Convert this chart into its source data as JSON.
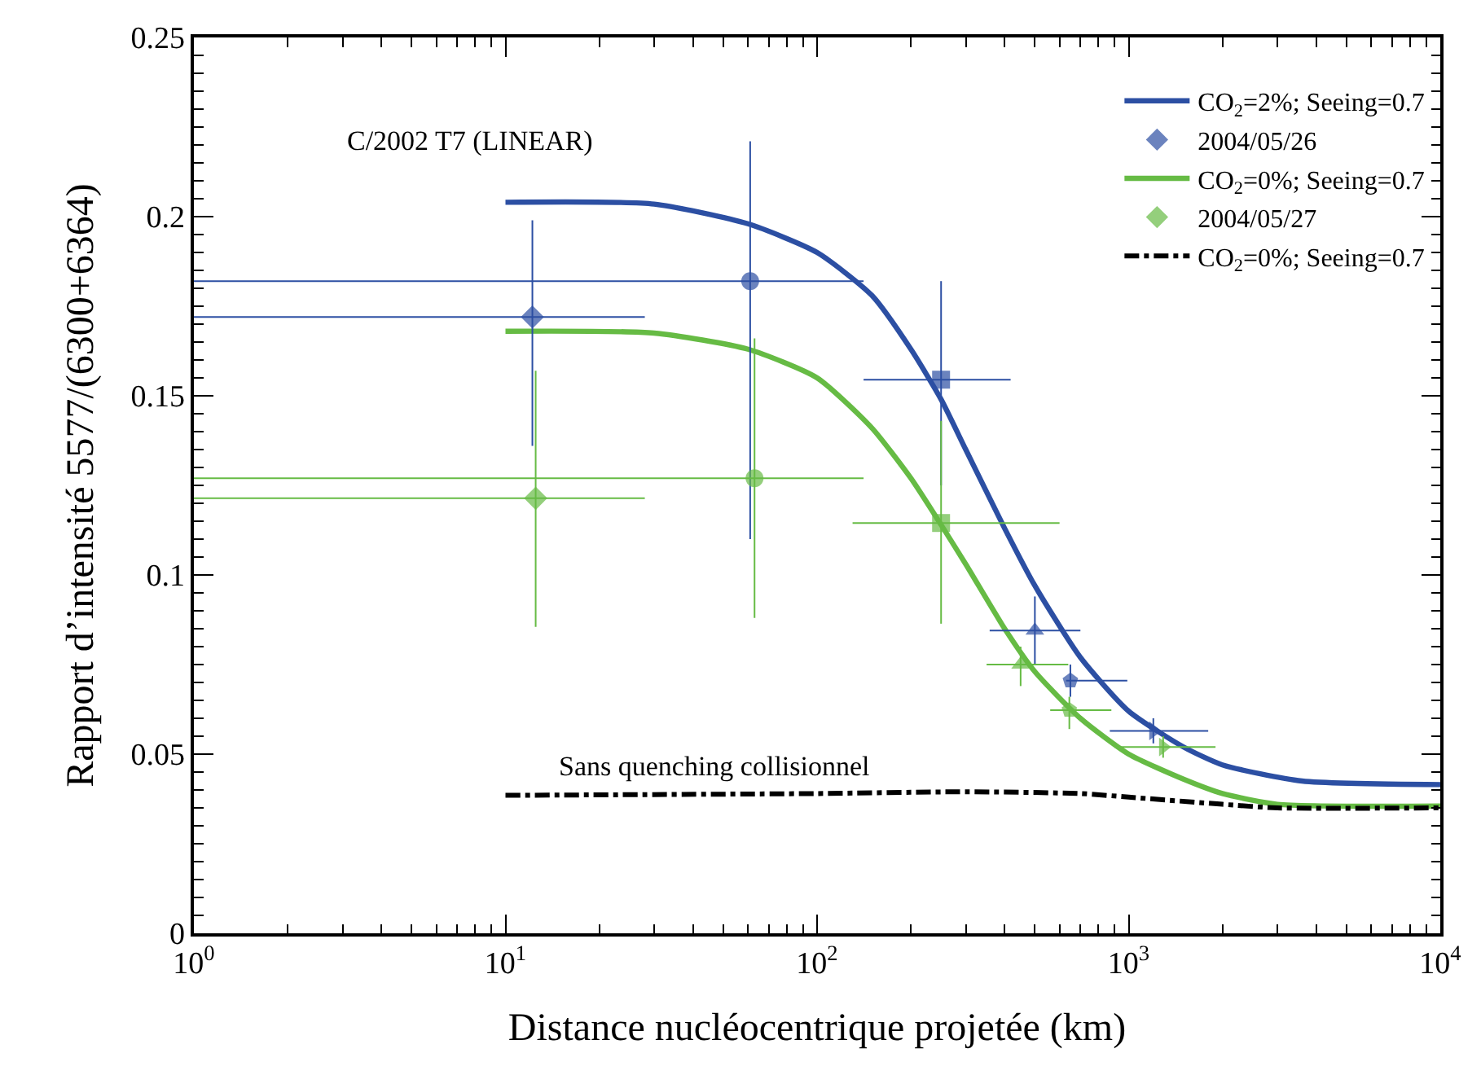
{
  "chart_data": {
    "type": "line",
    "xlabel": "Distance nucléocentrique projetée (km)",
    "ylabel": "Rapport d’intensité 5577/(6300+6364)",
    "log": "x",
    "legend": "top right",
    "xlim": [
      1,
      10000
    ],
    "xticks": [
      {
        "value": 1,
        "label": "10$^{0}$"
      },
      {
        "value": 10,
        "label": "10$^{1}$"
      },
      {
        "value": 100,
        "label": "10$^{2}$"
      },
      {
        "value": 1000,
        "label": "10$^{3}$"
      },
      {
        "value": 10000,
        "label": "10$^{4}$"
      }
    ],
    "ylim": [
      0,
      0.25
    ],
    "yticks": [
      0,
      0.05,
      {
        "value": 0.1,
        "label": "0.1"
      },
      0.15,
      {
        "value": 0.2,
        "label": "0.2"
      },
      0.25
    ],
    "annotations": [
      "C/2002 T7 (LINEAR)",
      "Sans quenching collisionnel"
    ],
    "series": [
      {
        "name": "CO$_{2}$=2%; Seeing=0.7",
        "color": "#2c4fa3",
        "line_style": "solid",
        "x": [
          10,
          30,
          60,
          100,
          150,
          200,
          250,
          300,
          400,
          500,
          700,
          1000,
          1500,
          2000,
          3600,
          10000
        ],
        "values": [
          0.204,
          0.2035,
          0.198,
          0.19,
          0.178,
          0.163,
          0.149,
          0.135,
          0.113,
          0.097,
          0.077,
          0.062,
          0.052,
          0.047,
          0.0425,
          0.0415
        ]
      },
      {
        "name": "2004/05/26",
        "type": "scatter",
        "color": "#2c4fa3",
        "marker": [
          "diamond",
          "circle",
          "square",
          "triangle",
          "pentagon",
          "triangle-right"
        ],
        "x": [
          12.2,
          61,
          250,
          500,
          650,
          1200
        ],
        "values": [
          0.172,
          0.182,
          0.1545,
          0.0845,
          0.0705,
          0.0565
        ],
        "errors": [
          [
            0.136,
            0.199
          ],
          [
            0.11,
            0.221
          ],
          [
            0.125,
            0.182
          ],
          [
            0.075,
            0.094
          ],
          [
            0.066,
            0.075
          ],
          [
            0.053,
            0.06
          ]
        ],
        "xerrors": [
          [
            1,
            28
          ],
          [
            1,
            141
          ],
          [
            141,
            418
          ],
          [
            358,
            700
          ],
          [
            630,
            990
          ],
          [
            870,
            1800
          ]
        ]
      },
      {
        "name": "CO$_{2}$=0%; Seeing=0.7",
        "color": "#66bb44",
        "line_style": "solid",
        "x": [
          10,
          30,
          60,
          100,
          150,
          200,
          250,
          300,
          400,
          500,
          700,
          1000,
          1500,
          2000,
          3000,
          10000
        ],
        "values": [
          0.168,
          0.1675,
          0.163,
          0.155,
          0.141,
          0.127,
          0.114,
          0.103,
          0.085,
          0.073,
          0.06,
          0.05,
          0.043,
          0.039,
          0.036,
          0.0355
        ]
      },
      {
        "name": "2004/05/27",
        "type": "scatter",
        "color": "#66bb44",
        "marker": [
          "diamond",
          "circle",
          "square",
          "triangle",
          "pentagon",
          "triangle-right"
        ],
        "x": [
          12.5,
          63,
          250,
          450,
          645,
          1290
        ],
        "values": [
          0.1214,
          0.127,
          0.1145,
          0.075,
          0.0623,
          0.052
        ],
        "errors": [
          [
            0.0855,
            0.157
          ],
          [
            0.088,
            0.166
          ],
          [
            0.0864,
            0.143
          ],
          [
            0.069,
            0.08
          ],
          [
            0.057,
            0.066
          ],
          [
            0.049,
            0.055
          ]
        ],
        "xerrors": [
          [
            1,
            28
          ],
          [
            1,
            141
          ],
          [
            130,
            600
          ],
          [
            350,
            640
          ],
          [
            560,
            880
          ],
          [
            900,
            1900
          ]
        ]
      },
      {
        "name": "CO$_{2}$=0%; Seeing=0.7",
        "color": "#000000",
        "line_style": "dashdot",
        "x": [
          10,
          100,
          300,
          700,
          1000,
          2000,
          3000,
          10000
        ],
        "values": [
          0.0385,
          0.039,
          0.0395,
          0.039,
          0.038,
          0.036,
          0.035,
          0.035
        ]
      }
    ]
  }
}
